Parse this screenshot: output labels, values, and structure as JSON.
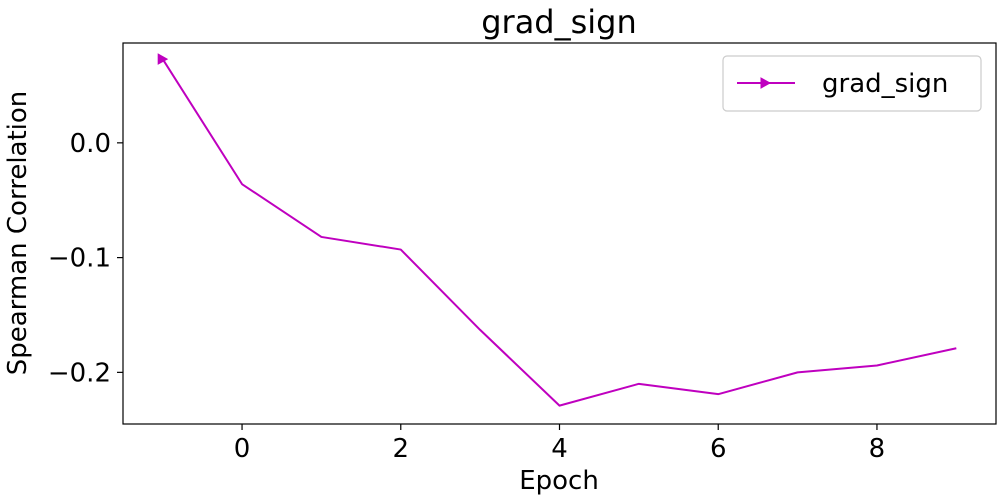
{
  "chart_data": {
    "type": "line",
    "title": "grad_sign",
    "xlabel": "Epoch",
    "ylabel": "Spearman Correlation",
    "xlim": [
      -1.5,
      9.5
    ],
    "ylim": [
      -0.245,
      0.087
    ],
    "xticks": [
      0,
      2,
      4,
      6,
      8
    ],
    "xtick_labels": [
      "0",
      "2",
      "4",
      "6",
      "8"
    ],
    "yticks": [
      0.0,
      -0.1,
      -0.2
    ],
    "ytick_labels": [
      "0.0",
      "−0.1",
      "−0.2"
    ],
    "grid": false,
    "legend_position": "top-right",
    "series": [
      {
        "name": "grad_sign",
        "color": "#bf00bf",
        "marker": "right-triangle",
        "x": [
          -1,
          0,
          1,
          2,
          3,
          4,
          5,
          6,
          7,
          8,
          9
        ],
        "y": [
          0.073,
          -0.036,
          -0.082,
          -0.093,
          -0.163,
          -0.229,
          -0.21,
          -0.219,
          -0.2,
          -0.194,
          -0.179
        ]
      }
    ]
  }
}
